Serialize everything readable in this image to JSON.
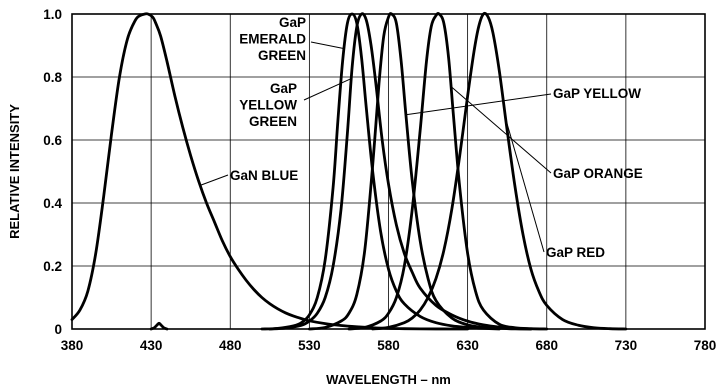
{
  "chart_data": {
    "type": "line",
    "title": "",
    "xlabel": "WAVELENGTH – nm",
    "ylabel": "RELATIVE INTENSITY",
    "xlim": [
      380,
      780
    ],
    "ylim": [
      0,
      1.0
    ],
    "grid": true,
    "x_ticks": [
      "380",
      "430",
      "480",
      "530",
      "580",
      "630",
      "680",
      "730",
      "780"
    ],
    "y_ticks": [
      "0",
      "0.2",
      "0.4",
      "0.6",
      "0.8",
      "1.0"
    ],
    "series": [
      {
        "name": "GaN BLUE",
        "label_lines": [
          "GaN BLUE"
        ],
        "peak": 428,
        "x": [
          380,
          385,
          390,
          395,
          400,
          405,
          410,
          415,
          420,
          423,
          426,
          428,
          431,
          433,
          436,
          440,
          445,
          450,
          455,
          460,
          465,
          470,
          475,
          480,
          485,
          490,
          495,
          500,
          505,
          510,
          515,
          520,
          525,
          530,
          540,
          550,
          560,
          570,
          580,
          590,
          600,
          610,
          620,
          630
        ],
        "y": [
          0.03,
          0.06,
          0.12,
          0.24,
          0.42,
          0.62,
          0.8,
          0.92,
          0.98,
          0.995,
          1.0,
          1.0,
          0.99,
          0.97,
          0.93,
          0.85,
          0.74,
          0.64,
          0.55,
          0.47,
          0.4,
          0.34,
          0.28,
          0.23,
          0.19,
          0.155,
          0.125,
          0.1,
          0.08,
          0.064,
          0.051,
          0.041,
          0.033,
          0.026,
          0.017,
          0.011,
          0.007,
          0.004,
          0.002,
          0.001,
          0.0005,
          0.0002,
          0.0001,
          0.0
        ]
      },
      {
        "name": "GaP EMERALD GREEN",
        "label_lines": [
          "GaP",
          "EMERALD",
          "GREEN"
        ],
        "peak": 557,
        "x": [
          500,
          510,
          520,
          525,
          530,
          535,
          540,
          545,
          548,
          551,
          554,
          557,
          560,
          563,
          566,
          570,
          575,
          580,
          585,
          590,
          600,
          610,
          620,
          630,
          640,
          650
        ],
        "y": [
          0.0,
          0.002,
          0.01,
          0.02,
          0.045,
          0.1,
          0.22,
          0.45,
          0.66,
          0.85,
          0.97,
          1.0,
          0.97,
          0.86,
          0.7,
          0.5,
          0.31,
          0.19,
          0.12,
          0.08,
          0.04,
          0.02,
          0.01,
          0.005,
          0.002,
          0.0
        ]
      },
      {
        "name": "GaP YELLOW GREEN",
        "label_lines": [
          "GaP",
          "YELLOW",
          "GREEN"
        ],
        "peak": 563,
        "x": [
          505,
          515,
          525,
          530,
          535,
          540,
          545,
          550,
          554,
          557,
          560,
          563,
          566,
          569,
          572,
          576,
          580,
          585,
          590,
          595,
          600,
          610,
          620,
          630,
          640,
          650,
          660,
          670
        ],
        "y": [
          0.0,
          0.003,
          0.012,
          0.025,
          0.05,
          0.1,
          0.2,
          0.38,
          0.62,
          0.83,
          0.96,
          1.0,
          0.98,
          0.9,
          0.78,
          0.6,
          0.46,
          0.33,
          0.24,
          0.18,
          0.13,
          0.075,
          0.045,
          0.025,
          0.013,
          0.006,
          0.002,
          0.0
        ]
      },
      {
        "name": "GaP YELLOW",
        "label_lines": [
          "GaP YELLOW"
        ],
        "peak": 582,
        "x": [
          530,
          540,
          550,
          555,
          560,
          565,
          570,
          574,
          577,
          580,
          582,
          585,
          588,
          591,
          595,
          600,
          605,
          610,
          620,
          630,
          640,
          650,
          660,
          670
        ],
        "y": [
          0.0,
          0.005,
          0.025,
          0.05,
          0.11,
          0.25,
          0.52,
          0.78,
          0.93,
          0.99,
          1.0,
          0.97,
          0.85,
          0.68,
          0.47,
          0.28,
          0.16,
          0.09,
          0.035,
          0.013,
          0.005,
          0.002,
          0.0005,
          0.0
        ]
      },
      {
        "name": "GaP ORANGE",
        "label_lines": [
          "GaP ORANGE"
        ],
        "peak": 612,
        "x": [
          555,
          565,
          575,
          580,
          585,
          590,
          595,
          600,
          604,
          607,
          610,
          612,
          615,
          618,
          621,
          625,
          630,
          635,
          640,
          650,
          660,
          670,
          680
        ],
        "y": [
          0.0,
          0.005,
          0.025,
          0.05,
          0.1,
          0.2,
          0.38,
          0.63,
          0.85,
          0.96,
          0.995,
          1.0,
          0.97,
          0.86,
          0.68,
          0.45,
          0.24,
          0.12,
          0.06,
          0.015,
          0.004,
          0.001,
          0.0
        ]
      },
      {
        "name": "GaP RED",
        "label_lines": [
          "GaP RED"
        ],
        "peak": 640,
        "x": [
          570,
          580,
          590,
          595,
          600,
          605,
          610,
          615,
          620,
          625,
          630,
          634,
          637,
          640,
          643,
          646,
          650,
          655,
          660,
          665,
          670,
          675,
          680,
          690,
          700,
          710,
          720,
          730
        ],
        "y": [
          0.0,
          0.005,
          0.02,
          0.035,
          0.06,
          0.1,
          0.16,
          0.25,
          0.38,
          0.55,
          0.74,
          0.88,
          0.96,
          1.0,
          0.99,
          0.94,
          0.82,
          0.63,
          0.45,
          0.3,
          0.19,
          0.12,
          0.075,
          0.03,
          0.012,
          0.004,
          0.001,
          0.0
        ]
      },
      {
        "name": "",
        "label_lines": [],
        "peak": 435,
        "x": [
          430,
          432,
          434,
          435,
          436,
          438,
          440
        ],
        "y": [
          0.0,
          0.004,
          0.014,
          0.018,
          0.014,
          0.004,
          0.0
        ]
      }
    ]
  }
}
